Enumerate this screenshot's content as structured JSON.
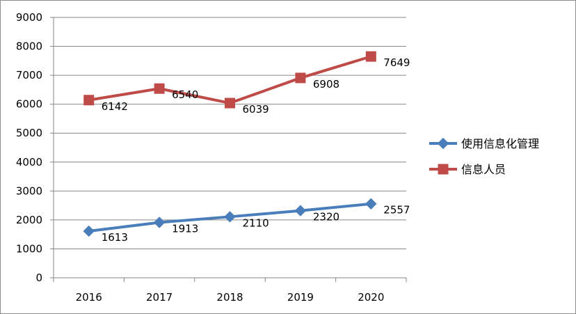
{
  "chart_data": {
    "type": "line",
    "title": "",
    "xlabel": "",
    "ylabel": "",
    "categories": [
      "2016",
      "2017",
      "2018",
      "2019",
      "2020"
    ],
    "ylim": [
      0,
      9000
    ],
    "yticks": [
      0,
      1000,
      2000,
      3000,
      4000,
      5000,
      6000,
      7000,
      8000,
      9000
    ],
    "grid": true,
    "legend_position": "right",
    "series": [
      {
        "name": "使用信息化管理",
        "values": [
          1613,
          1913,
          2110,
          2320,
          2557
        ],
        "labels": [
          "1613",
          "1913",
          "2110",
          "2320",
          "2557"
        ],
        "color": "#4a7ebb",
        "marker": "diamond"
      },
      {
        "name": "信息人员",
        "values": [
          6142,
          6540,
          6039,
          6908,
          7649
        ],
        "labels": [
          "6142",
          "6540",
          "6039",
          "6908",
          "7649"
        ],
        "color": "#be4b48",
        "marker": "square"
      }
    ]
  }
}
